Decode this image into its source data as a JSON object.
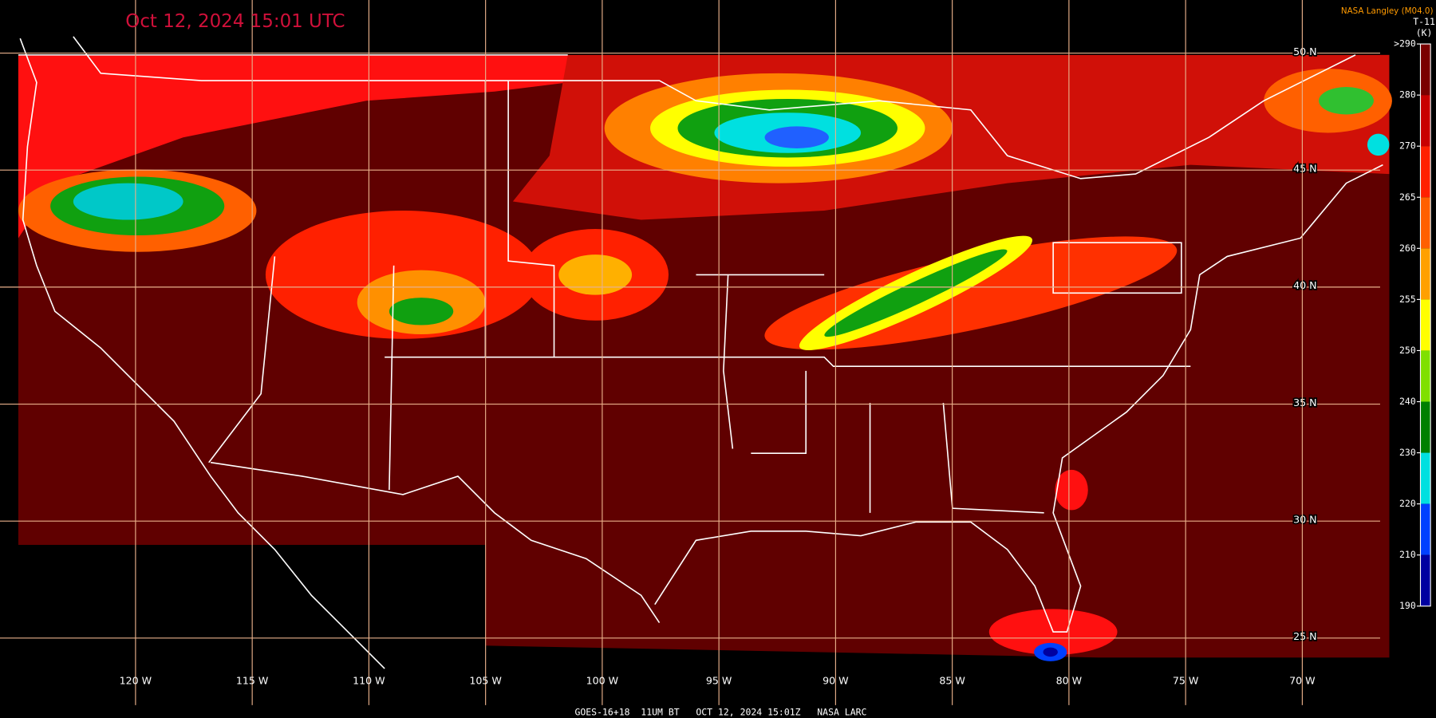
{
  "header": {
    "title": "Oct 12, 2024 15:01 UTC",
    "credit": "NASA Langley (M04.0)"
  },
  "footer": "GOES-16+18  11UM BT   OCT 12, 2024 15:01Z   NASA LARC",
  "graticule": {
    "latitudes": [
      {
        "value": 50,
        "label": "50 N"
      },
      {
        "value": 45,
        "label": "45 N"
      },
      {
        "value": 40,
        "label": "40 N"
      },
      {
        "value": 35,
        "label": "35 N"
      },
      {
        "value": 30,
        "label": "30 N"
      },
      {
        "value": 25,
        "label": "25 N"
      }
    ],
    "longitudes": [
      {
        "value": 120,
        "label": "120 W"
      },
      {
        "value": 115,
        "label": "115 W"
      },
      {
        "value": 110,
        "label": "110 W"
      },
      {
        "value": 105,
        "label": "105 W"
      },
      {
        "value": 100,
        "label": "100 W"
      },
      {
        "value": 95,
        "label": "95 W"
      },
      {
        "value": 90,
        "label": "90 W"
      },
      {
        "value": 85,
        "label": "85 W"
      },
      {
        "value": 80,
        "label": "80 W"
      },
      {
        "value": 75,
        "label": "75 W"
      },
      {
        "value": 70,
        "label": "70 W"
      }
    ],
    "color": "#e8b08a"
  },
  "legend": {
    "title": "T-11",
    "unit": "(K)",
    "ticks": [
      {
        "value": 290,
        "label": ">290"
      },
      280,
      270,
      265,
      260,
      255,
      250,
      240,
      230,
      220,
      210,
      190
    ],
    "colors": [
      "#7a0000",
      "#c80000",
      "#ff2000",
      "#ff6000",
      "#ffa000",
      "#ffff00",
      "#80e000",
      "#008000",
      "#00e0e0",
      "#0040ff",
      "#0000a0",
      "#a040ff"
    ]
  }
}
